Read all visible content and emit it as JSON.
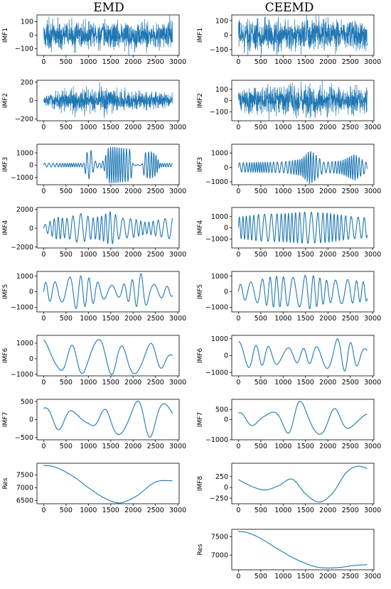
{
  "headers": {
    "left": "EMD",
    "right": "CEEMD"
  },
  "colors": {
    "line": "#1f77b4",
    "axis": "#000000"
  },
  "chart_data": [
    {
      "type": "line",
      "column": "EMD",
      "ylabel": "IMF1",
      "xlim": [
        0,
        2880
      ],
      "ylim": [
        -150,
        150
      ],
      "yticks": [
        -100,
        0,
        100
      ],
      "xticks": [
        0,
        500,
        1000,
        1500,
        2000,
        2500,
        3000
      ],
      "signal": "noise",
      "amplitude": [
        [
          0,
          75
        ],
        [
          1500,
          80
        ],
        [
          2880,
          78
        ]
      ],
      "peaks": [
        [
          1900,
          -152
        ],
        [
          2820,
          148
        ],
        [
          120,
          135
        ]
      ]
    },
    {
      "type": "line",
      "column": "CEEMD",
      "ylabel": "IMF1",
      "xlim": [
        0,
        2880
      ],
      "ylim": [
        -140,
        140
      ],
      "yticks": [
        -100,
        0,
        100
      ],
      "xticks": [
        0,
        500,
        1000,
        1500,
        2000,
        2500,
        3000
      ],
      "signal": "noise",
      "amplitude": [
        [
          0,
          80
        ],
        [
          1500,
          85
        ],
        [
          2880,
          82
        ]
      ],
      "peaks": [
        [
          600,
          130
        ],
        [
          1400,
          -130
        ]
      ]
    },
    {
      "type": "line",
      "column": "EMD",
      "ylabel": "IMF2",
      "xlim": [
        0,
        2880
      ],
      "ylim": [
        -220,
        220
      ],
      "yticks": [
        -200,
        0,
        200
      ],
      "xticks": [
        0,
        500,
        1000,
        1500,
        2000,
        2500,
        3000
      ],
      "signal": "noise",
      "amplitude": [
        [
          0,
          45
        ],
        [
          600,
          95
        ],
        [
          1200,
          110
        ],
        [
          1800,
          85
        ],
        [
          2400,
          75
        ],
        [
          2880,
          55
        ]
      ],
      "peaks": [
        [
          1250,
          200
        ],
        [
          1350,
          -190
        ],
        [
          700,
          -180
        ]
      ]
    },
    {
      "type": "line",
      "column": "CEEMD",
      "ylabel": "IMF2",
      "xlim": [
        0,
        2880
      ],
      "ylim": [
        -180,
        180
      ],
      "yticks": [
        -100,
        0,
        100
      ],
      "xticks": [
        0,
        500,
        1000,
        1500,
        2000,
        2500,
        3000
      ],
      "signal": "noise",
      "amplitude": [
        [
          0,
          80
        ],
        [
          800,
          100
        ],
        [
          1500,
          110
        ],
        [
          2200,
          95
        ],
        [
          2880,
          85
        ]
      ],
      "peaks": [
        [
          1400,
          165
        ],
        [
          1600,
          -160
        ]
      ]
    },
    {
      "type": "line",
      "column": "EMD",
      "ylabel": "IMF3",
      "xlim": [
        0,
        2880
      ],
      "ylim": [
        -1600,
        1700
      ],
      "yticks": [
        -1000,
        0,
        1000
      ],
      "xticks": [
        0,
        500,
        1000,
        1500,
        2000,
        2500,
        3000
      ],
      "signal": "osc",
      "cycles": [
        [
          0,
          45
        ],
        [
          2880,
          45
        ]
      ],
      "amplitude": [
        [
          0,
          150
        ],
        [
          900,
          150
        ],
        [
          950,
          1000
        ],
        [
          1060,
          1200
        ],
        [
          1120,
          400
        ],
        [
          1250,
          150
        ],
        [
          1350,
          400
        ],
        [
          1450,
          1450
        ],
        [
          1600,
          1450
        ],
        [
          1700,
          1400
        ],
        [
          1950,
          1300
        ],
        [
          2000,
          50
        ],
        [
          2200,
          50
        ],
        [
          2250,
          1000
        ],
        [
          2400,
          1100
        ],
        [
          2500,
          900
        ],
        [
          2600,
          150
        ],
        [
          2880,
          150
        ]
      ]
    },
    {
      "type": "line",
      "column": "CEEMD",
      "ylabel": "IMF3",
      "xlim": [
        0,
        2880
      ],
      "ylim": [
        -1200,
        1600
      ],
      "yticks": [
        -1000,
        0,
        1000
      ],
      "xticks": [
        0,
        500,
        1000,
        1500,
        2000,
        2500,
        3000
      ],
      "signal": "osc",
      "cycles": [
        [
          0,
          45
        ],
        [
          2880,
          45
        ]
      ],
      "amplitude": [
        [
          0,
          320
        ],
        [
          500,
          350
        ],
        [
          1000,
          380
        ],
        [
          1400,
          560
        ],
        [
          1600,
          1150
        ],
        [
          1700,
          950
        ],
        [
          1900,
          360
        ],
        [
          2300,
          450
        ],
        [
          2600,
          900
        ],
        [
          2880,
          300
        ]
      ]
    },
    {
      "type": "line",
      "column": "EMD",
      "ylabel": "IMF4",
      "xlim": [
        0,
        2880
      ],
      "ylim": [
        -2100,
        2200
      ],
      "yticks": [
        -2000,
        0,
        2000
      ],
      "xticks": [
        0,
        500,
        1000,
        1500,
        2000,
        2500,
        3000
      ],
      "signal": "osc",
      "cycles": [
        [
          0,
          24
        ],
        [
          2880,
          24
        ]
      ],
      "amplitude": [
        [
          0,
          300
        ],
        [
          300,
          1200
        ],
        [
          500,
          1000
        ],
        [
          800,
          1600
        ],
        [
          1100,
          1100
        ],
        [
          1300,
          1300
        ],
        [
          1500,
          1800
        ],
        [
          1700,
          1100
        ],
        [
          2000,
          1000
        ],
        [
          2300,
          600
        ],
        [
          2600,
          900
        ],
        [
          2880,
          1200
        ]
      ]
    },
    {
      "type": "line",
      "column": "CEEMD",
      "ylabel": "IMF4",
      "xlim": [
        0,
        2880
      ],
      "ylim": [
        -1800,
        1800
      ],
      "yticks": [
        -1000,
        0,
        1000
      ],
      "xticks": [
        0,
        500,
        1000,
        1500,
        2000,
        2500,
        3000
      ],
      "signal": "osc",
      "cycles": [
        [
          0,
          28
        ],
        [
          2880,
          28
        ]
      ],
      "amplitude": [
        [
          0,
          950
        ],
        [
          500,
          1200
        ],
        [
          1000,
          1250
        ],
        [
          1500,
          1400
        ],
        [
          2000,
          1300
        ],
        [
          2500,
          1000
        ],
        [
          2880,
          900
        ]
      ]
    },
    {
      "type": "line",
      "column": "EMD",
      "ylabel": "IMF5",
      "xlim": [
        0,
        2880
      ],
      "ylim": [
        -1300,
        1300
      ],
      "yticks": [
        -1000,
        0,
        1000
      ],
      "xticks": [
        0,
        500,
        1000,
        1500,
        2000,
        2500,
        3000
      ],
      "signal": "osc",
      "cycles": [
        [
          0,
          12
        ],
        [
          2880,
          12
        ]
      ],
      "amplitude": [
        [
          0,
          600
        ],
        [
          400,
          650
        ],
        [
          700,
          1100
        ],
        [
          1000,
          900
        ],
        [
          1300,
          500
        ],
        [
          1700,
          350
        ],
        [
          2000,
          800
        ],
        [
          2200,
          1200
        ],
        [
          2400,
          500
        ],
        [
          2880,
          300
        ]
      ]
    },
    {
      "type": "line",
      "column": "CEEMD",
      "ylabel": "IMF5",
      "xlim": [
        0,
        2880
      ],
      "ylim": [
        -1300,
        1300
      ],
      "yticks": [
        -1000,
        0,
        1000
      ],
      "xticks": [
        0,
        500,
        1000,
        1500,
        2000,
        2500,
        3000
      ],
      "signal": "osc",
      "cycles": [
        [
          0,
          15
        ],
        [
          2880,
          15
        ]
      ],
      "amplitude": [
        [
          0,
          450
        ],
        [
          400,
          700
        ],
        [
          800,
          1000
        ],
        [
          1200,
          900
        ],
        [
          1600,
          1100
        ],
        [
          2000,
          700
        ],
        [
          2400,
          800
        ],
        [
          2880,
          600
        ]
      ]
    },
    {
      "type": "line",
      "column": "EMD",
      "ylabel": "IMF6",
      "xlim": [
        0,
        2880
      ],
      "ylim": [
        -1100,
        1500
      ],
      "yticks": [
        -1000,
        0,
        1000
      ],
      "xticks": [
        0,
        500,
        1000,
        1500,
        2000,
        2500,
        3000
      ],
      "signal": "osc",
      "cycles": [
        [
          0,
          5
        ],
        [
          2880,
          5
        ]
      ],
      "phase": 1.57,
      "amplitude": [
        [
          0,
          1200
        ],
        [
          300,
          700
        ],
        [
          700,
          900
        ],
        [
          1000,
          1000
        ],
        [
          1300,
          1300
        ],
        [
          1700,
          800
        ],
        [
          2100,
          1000
        ],
        [
          2400,
          1000
        ],
        [
          2880,
          200
        ]
      ]
    },
    {
      "type": "line",
      "column": "CEEMD",
      "ylabel": "IMF6",
      "xlim": [
        0,
        2880
      ],
      "ylim": [
        -1200,
        1200
      ],
      "yticks": [
        -1000,
        0,
        1000
      ],
      "xticks": [
        0,
        500,
        1000,
        1500,
        2000,
        2500,
        3000
      ],
      "signal": "osc",
      "cycles": [
        [
          0,
          8
        ],
        [
          2880,
          8
        ]
      ],
      "phase": 1.57,
      "amplitude": [
        [
          0,
          850
        ],
        [
          400,
          600
        ],
        [
          900,
          500
        ],
        [
          1400,
          400
        ],
        [
          1800,
          550
        ],
        [
          2200,
          1000
        ],
        [
          2400,
          900
        ],
        [
          2880,
          350
        ]
      ]
    },
    {
      "type": "line",
      "column": "EMD",
      "ylabel": "IMF7",
      "xlim": [
        0,
        2880
      ],
      "ylim": [
        -560,
        560
      ],
      "yticks": [
        -500,
        0,
        500
      ],
      "xticks": [
        0,
        500,
        1000,
        1500,
        2000,
        2500,
        3000
      ],
      "signal": "osc",
      "cycles": [
        [
          0,
          4.2
        ],
        [
          2880,
          4.2
        ]
      ],
      "phase": 1.2,
      "amplitude": [
        [
          0,
          330
        ],
        [
          600,
          250
        ],
        [
          1000,
          130
        ],
        [
          1400,
          300
        ],
        [
          1800,
          470
        ],
        [
          2200,
          520
        ],
        [
          2500,
          470
        ],
        [
          2880,
          400
        ]
      ]
    },
    {
      "type": "line",
      "column": "CEEMD",
      "ylabel": "IMF7",
      "xlim": [
        0,
        2880
      ],
      "ylim": [
        -1000,
        1000
      ],
      "yticks": [
        -1000,
        0,
        500
      ],
      "xticks": [
        0,
        500,
        1000,
        1500,
        2000,
        2500,
        3000
      ],
      "signal": "osc",
      "cycles": [
        [
          0,
          4
        ],
        [
          2880,
          4
        ]
      ],
      "phase": 1.2,
      "amplitude": [
        [
          0,
          350
        ],
        [
          600,
          250
        ],
        [
          1000,
          550
        ],
        [
          1300,
          900
        ],
        [
          1600,
          900
        ],
        [
          2000,
          600
        ],
        [
          2400,
          450
        ],
        [
          2880,
          300
        ]
      ]
    },
    {
      "type": "line",
      "column": "EMD",
      "ylabel": "Res",
      "xlim": [
        0,
        2880
      ],
      "ylim": [
        6370,
        7960
      ],
      "yticks": [
        6500,
        7000,
        7500
      ],
      "xticks": [
        0,
        500,
        1000,
        1500,
        2000,
        2500,
        3000
      ],
      "signal": "points",
      "points": [
        [
          0,
          7870
        ],
        [
          200,
          7840
        ],
        [
          400,
          7700
        ],
        [
          700,
          7400
        ],
        [
          1000,
          7000
        ],
        [
          1300,
          6650
        ],
        [
          1600,
          6420
        ],
        [
          1800,
          6440
        ],
        [
          2100,
          6700
        ],
        [
          2400,
          7120
        ],
        [
          2600,
          7270
        ],
        [
          2880,
          7270
        ]
      ]
    },
    {
      "type": "line",
      "column": "CEEMD",
      "ylabel": "IMF8",
      "xlim": [
        0,
        2880
      ],
      "ylim": [
        -380,
        560
      ],
      "yticks": [
        -250,
        0,
        250
      ],
      "xticks": [
        0,
        500,
        1000,
        1500,
        2000,
        2500,
        3000
      ],
      "signal": "points",
      "points": [
        [
          0,
          180
        ],
        [
          300,
          20
        ],
        [
          600,
          -60
        ],
        [
          900,
          40
        ],
        [
          1200,
          190
        ],
        [
          1500,
          -150
        ],
        [
          1800,
          -340
        ],
        [
          2100,
          -140
        ],
        [
          2400,
          330
        ],
        [
          2650,
          490
        ],
        [
          2880,
          440
        ]
      ]
    },
    {
      "type": "line",
      "column": "CEEMD",
      "ylabel": "Res",
      "xlim": [
        0,
        2880
      ],
      "ylim": [
        6600,
        7700
      ],
      "yticks": [
        7000,
        7500
      ],
      "xticks": [
        0,
        500,
        1000,
        1500,
        2000,
        2500,
        3000
      ],
      "signal": "points",
      "points": [
        [
          0,
          7640
        ],
        [
          200,
          7610
        ],
        [
          500,
          7450
        ],
        [
          900,
          7150
        ],
        [
          1300,
          6880
        ],
        [
          1700,
          6690
        ],
        [
          2000,
          6650
        ],
        [
          2300,
          6670
        ],
        [
          2600,
          6720
        ],
        [
          2880,
          6740
        ]
      ]
    }
  ]
}
